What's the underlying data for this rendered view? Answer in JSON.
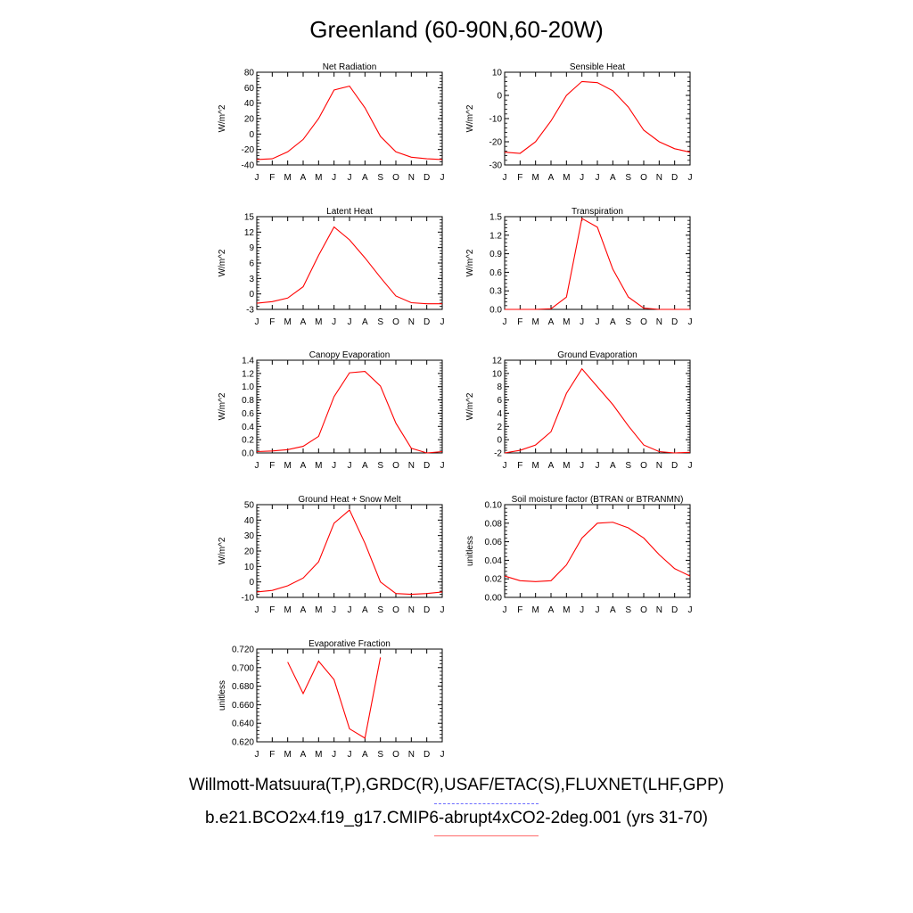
{
  "title": "Greenland (60-90N,60-20W)",
  "legend": {
    "obs_label": "Willmott-Matsuura(T,P),GRDC(R),USAF/ETAC(S),FLUXNET(LHF,GPP)",
    "obs_color": "#6b6bff",
    "model_label": "b.e21.BCO2x4.f19_g17.CMIP6-abrupt4xCO2-2deg.001 (yrs 31-70)",
    "model_color": "#ff6b6b"
  },
  "chart_data": [
    {
      "type": "line",
      "title": "Net Radiation",
      "ylabel": "W/m^2",
      "categories": [
        "J",
        "F",
        "M",
        "A",
        "M",
        "J",
        "J",
        "A",
        "S",
        "O",
        "N",
        "D",
        "J"
      ],
      "ylim": [
        -40,
        80
      ],
      "yticks": [
        -40,
        -20,
        0,
        20,
        40,
        60,
        80
      ],
      "ytick_labels": [
        "-40",
        "-20",
        "0",
        "20",
        "40",
        "60",
        "80"
      ],
      "line_color": "#ff0000",
      "values": [
        -33,
        -32,
        -23,
        -7,
        20,
        57,
        62,
        34,
        -3,
        -23,
        -30,
        -32,
        -33
      ]
    },
    {
      "type": "line",
      "title": "Sensible Heat",
      "ylabel": "W/m^2",
      "categories": [
        "J",
        "F",
        "M",
        "A",
        "M",
        "J",
        "J",
        "A",
        "S",
        "O",
        "N",
        "D",
        "J"
      ],
      "ylim": [
        -30,
        10
      ],
      "yticks": [
        -30,
        -20,
        -10,
        0,
        10
      ],
      "ytick_labels": [
        "-30",
        "-20",
        "-10",
        "0",
        "10"
      ],
      "line_color": "#ff0000",
      "values": [
        -24.5,
        -25,
        -20,
        -11,
        0,
        6,
        5.5,
        2,
        -5,
        -15,
        -20,
        -23,
        -24.5
      ]
    },
    {
      "type": "line",
      "title": "Latent Heat",
      "ylabel": "W/m^2",
      "categories": [
        "J",
        "F",
        "M",
        "A",
        "M",
        "J",
        "J",
        "A",
        "S",
        "O",
        "N",
        "D",
        "J"
      ],
      "ylim": [
        -3,
        15
      ],
      "yticks": [
        -3,
        0,
        3,
        6,
        9,
        12,
        15
      ],
      "ytick_labels": [
        "-3",
        "0",
        "3",
        "6",
        "9",
        "12",
        "15"
      ],
      "line_color": "#ff0000",
      "values": [
        -1.8,
        -1.5,
        -0.8,
        1.4,
        7.5,
        13,
        10.5,
        7,
        3.2,
        -0.4,
        -1.7,
        -1.9,
        -1.9
      ]
    },
    {
      "type": "line",
      "title": "Transpiration",
      "ylabel": "W/m^2",
      "categories": [
        "J",
        "F",
        "M",
        "A",
        "M",
        "J",
        "J",
        "A",
        "S",
        "O",
        "N",
        "D",
        "J"
      ],
      "ylim": [
        0,
        1.5
      ],
      "yticks": [
        0,
        0.3,
        0.6,
        0.9,
        1.2,
        1.5
      ],
      "ytick_labels": [
        "0.0",
        "0.3",
        "0.6",
        "0.9",
        "1.2",
        "1.5"
      ],
      "line_color": "#ff0000",
      "values": [
        0,
        0,
        0,
        0.01,
        0.2,
        1.47,
        1.33,
        0.65,
        0.2,
        0.02,
        0,
        0,
        0
      ]
    },
    {
      "type": "line",
      "title": "Canopy Evaporation",
      "ylabel": "W/m^2",
      "categories": [
        "J",
        "F",
        "M",
        "A",
        "M",
        "J",
        "J",
        "A",
        "S",
        "O",
        "N",
        "D",
        "J"
      ],
      "ylim": [
        0,
        1.4
      ],
      "yticks": [
        0,
        0.2,
        0.4,
        0.6,
        0.8,
        1.0,
        1.2,
        1.4
      ],
      "ytick_labels": [
        "0.0",
        "0.2",
        "0.4",
        "0.6",
        "0.8",
        "1.0",
        "1.2",
        "1.4"
      ],
      "line_color": "#ff0000",
      "values": [
        0.02,
        0.03,
        0.05,
        0.1,
        0.25,
        0.85,
        1.21,
        1.23,
        1.01,
        0.45,
        0.07,
        0,
        0.02
      ]
    },
    {
      "type": "line",
      "title": "Ground Evaporation",
      "ylabel": "W/m^2",
      "categories": [
        "J",
        "F",
        "M",
        "A",
        "M",
        "J",
        "J",
        "A",
        "S",
        "O",
        "N",
        "D",
        "J"
      ],
      "ylim": [
        -2,
        12
      ],
      "yticks": [
        -2,
        0,
        2,
        4,
        6,
        8,
        10,
        12
      ],
      "ytick_labels": [
        "-2",
        "0",
        "2",
        "4",
        "6",
        "8",
        "10",
        "12"
      ],
      "line_color": "#ff0000",
      "values": [
        -2,
        -1.6,
        -0.8,
        1.2,
        7,
        10.7,
        8,
        5.3,
        2.1,
        -0.8,
        -1.8,
        -2,
        -1.9
      ]
    },
    {
      "type": "line",
      "title": "Ground Heat + Snow Melt",
      "ylabel": "W/m^2",
      "categories": [
        "J",
        "F",
        "M",
        "A",
        "M",
        "J",
        "J",
        "A",
        "S",
        "O",
        "N",
        "D",
        "J"
      ],
      "ylim": [
        -10,
        50
      ],
      "yticks": [
        -10,
        0,
        10,
        20,
        30,
        40,
        50
      ],
      "ytick_labels": [
        "-10",
        "0",
        "10",
        "20",
        "30",
        "40",
        "50"
      ],
      "line_color": "#ff0000",
      "values": [
        -6.5,
        -5.5,
        -2.5,
        2.5,
        13,
        38,
        46.5,
        25,
        0,
        -7.5,
        -8,
        -7.5,
        -6.5
      ]
    },
    {
      "type": "line",
      "title": "Soil moisture factor (BTRAN or BTRANMN)",
      "ylabel": "unitless",
      "categories": [
        "J",
        "F",
        "M",
        "A",
        "M",
        "J",
        "J",
        "A",
        "S",
        "O",
        "N",
        "D",
        "J"
      ],
      "ylim": [
        0,
        0.1
      ],
      "yticks": [
        0,
        0.02,
        0.04,
        0.06,
        0.08,
        0.1
      ],
      "ytick_labels": [
        "0.00",
        "0.02",
        "0.04",
        "0.06",
        "0.08",
        "0.10"
      ],
      "line_color": "#ff0000",
      "values": [
        0.023,
        0.018,
        0.017,
        0.018,
        0.035,
        0.064,
        0.08,
        0.081,
        0.075,
        0.064,
        0.046,
        0.031,
        0.023
      ]
    },
    {
      "type": "line",
      "title": "Evaporative Fraction",
      "ylabel": "unitless",
      "categories": [
        "J",
        "F",
        "M",
        "A",
        "M",
        "J",
        "J",
        "A",
        "S",
        "O",
        "N",
        "D",
        "J"
      ],
      "ylim": [
        0.62,
        0.72
      ],
      "yticks": [
        0.62,
        0.64,
        0.66,
        0.68,
        0.7,
        0.72
      ],
      "ytick_labels": [
        "0.620",
        "0.640",
        "0.660",
        "0.680",
        "0.700",
        "0.720"
      ],
      "line_color": "#ff0000",
      "values": [
        null,
        null,
        0.706,
        0.672,
        0.707,
        0.687,
        0.634,
        0.624,
        0.711,
        null,
        null,
        null,
        null
      ]
    }
  ]
}
